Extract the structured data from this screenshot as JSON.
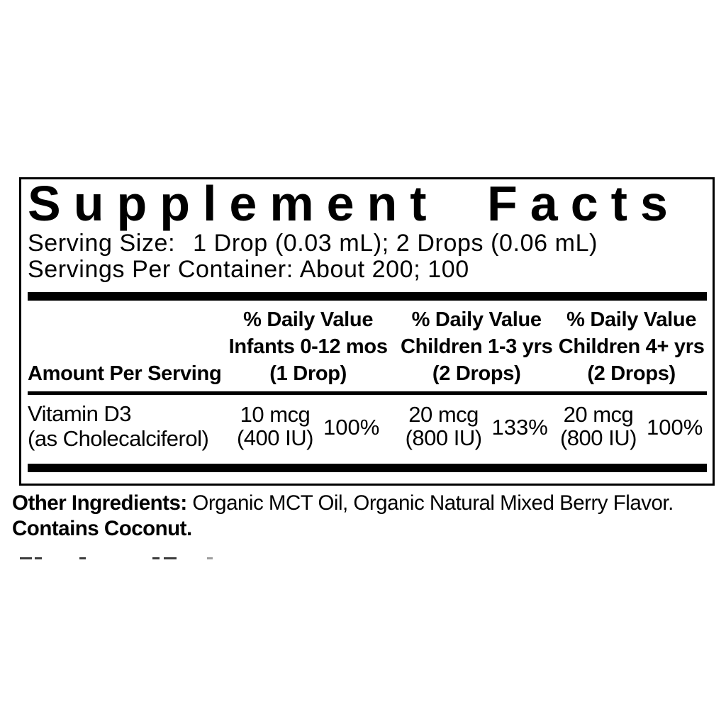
{
  "panel": {
    "title": "Supplement Facts",
    "serving_size_label": "Serving Size:",
    "serving_size_value": "1 Drop (0.03 mL); 2 Drops (0.06 mL)",
    "servings_per_container_label": "Servings Per Container:",
    "servings_per_container_value": "About 200; 100",
    "table": {
      "amount_header": "Amount Per Serving",
      "columns": [
        {
          "dv_label": "% Daily Value",
          "group": "Infants 0-12 mos",
          "serving": "(1 Drop)"
        },
        {
          "dv_label": "% Daily Value",
          "group": "Children 1-3 yrs",
          "serving": "(2 Drops)"
        },
        {
          "dv_label": "% Daily Value",
          "group": "Children 4+ yrs",
          "serving": "(2 Drops)"
        }
      ],
      "rows": [
        {
          "name": "Vitamin D3",
          "name_detail": "(as Cholecalciferol)",
          "values": [
            {
              "amount": "10 mcg",
              "amount_detail": "(400 IU)",
              "percent": "100%"
            },
            {
              "amount": "20 mcg",
              "amount_detail": "(800 IU)",
              "percent": "133%"
            },
            {
              "amount": "20 mcg",
              "amount_detail": "(800 IU)",
              "percent": "100%"
            }
          ]
        }
      ]
    }
  },
  "footer": {
    "other_ingredients_label": "Other Ingredients:",
    "other_ingredients_value": "Organic MCT Oil, Organic Natural Mixed Berry Flavor.",
    "contains_label": "Contains Coconut."
  },
  "colors": {
    "text": "#000000",
    "background": "#ffffff"
  }
}
